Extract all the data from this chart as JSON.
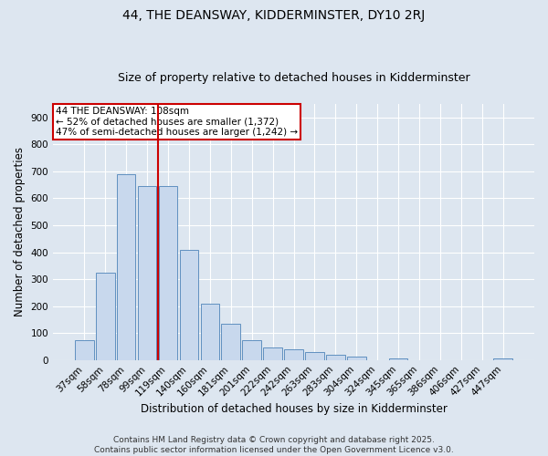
{
  "title_line1": "44, THE DEANSWAY, KIDDERMINSTER, DY10 2RJ",
  "title_line2": "Size of property relative to detached houses in Kidderminster",
  "xlabel": "Distribution of detached houses by size in Kidderminster",
  "ylabel": "Number of detached properties",
  "categories": [
    "37sqm",
    "58sqm",
    "78sqm",
    "99sqm",
    "119sqm",
    "140sqm",
    "160sqm",
    "181sqm",
    "201sqm",
    "222sqm",
    "242sqm",
    "263sqm",
    "283sqm",
    "304sqm",
    "324sqm",
    "345sqm",
    "365sqm",
    "386sqm",
    "406sqm",
    "427sqm",
    "447sqm"
  ],
  "values": [
    75,
    325,
    690,
    645,
    645,
    410,
    210,
    135,
    72,
    47,
    40,
    30,
    20,
    11,
    0,
    5,
    0,
    0,
    0,
    0,
    7
  ],
  "bar_color": "#c8d8ed",
  "bar_edge_color": "#6090c0",
  "vline_x_index": 3.5,
  "vline_color": "#cc0000",
  "annotation_text_line1": "44 THE DEANSWAY: 108sqm",
  "annotation_text_line2": "← 52% of detached houses are smaller (1,372)",
  "annotation_text_line3": "47% of semi-detached houses are larger (1,242) →",
  "annotation_box_color": "#ffffff",
  "annotation_box_edge_color": "#cc0000",
  "ylim": [
    0,
    950
  ],
  "yticks": [
    0,
    100,
    200,
    300,
    400,
    500,
    600,
    700,
    800,
    900
  ],
  "bg_color": "#dde6f0",
  "plot_bg_color": "#dde6f0",
  "footer_line1": "Contains HM Land Registry data © Crown copyright and database right 2025.",
  "footer_line2": "Contains public sector information licensed under the Open Government Licence v3.0.",
  "title_fontsize": 10,
  "subtitle_fontsize": 9,
  "axis_label_fontsize": 8.5,
  "tick_fontsize": 7.5,
  "annotation_fontsize": 7.5,
  "footer_fontsize": 6.5
}
